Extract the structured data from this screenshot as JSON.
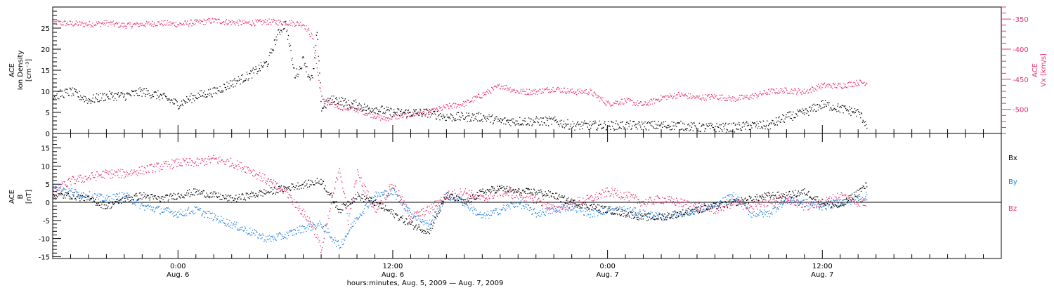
{
  "colors": {
    "black": "#000000",
    "red": "#e8336b",
    "blue": "#1f7fe0"
  },
  "chart_data": [
    {
      "type": "scatter",
      "panel": "top",
      "ylabel_left": [
        "ACE",
        "Ion Density",
        "[cm⁻³]"
      ],
      "ylabel_right": [
        "ACE",
        "Vx [km/s]"
      ],
      "ylim_left": [
        0,
        30
      ],
      "ylim_right": [
        -540,
        -330
      ],
      "yticks_left": [
        0,
        5,
        10,
        15,
        20,
        25
      ],
      "yticks_right": [
        -350,
        -400,
        -450,
        -500
      ],
      "series": [
        {
          "color": "#000000",
          "axis": "left",
          "x_hours": [
            0,
            2,
            4,
            6,
            8,
            10,
            12,
            14,
            16,
            18,
            20,
            22,
            24,
            24.5,
            25,
            25.5,
            26,
            26.5,
            27,
            27.5,
            28,
            28.5,
            29,
            29.5,
            30,
            31,
            32,
            33,
            34,
            35,
            36,
            38,
            40,
            42,
            44,
            46,
            48,
            50,
            52,
            54,
            56,
            58,
            60,
            62,
            64,
            66,
            68,
            70,
            72,
            74,
            76,
            78,
            80,
            82,
            84,
            86,
            88,
            90,
            91
          ],
          "values": [
            9,
            10,
            8,
            9,
            9,
            10,
            9,
            7,
            9,
            10,
            12,
            14,
            17,
            20,
            23,
            25,
            26,
            20,
            14,
            15,
            18,
            14,
            13,
            24,
            6,
            8,
            8,
            7,
            7,
            6,
            6,
            5,
            5,
            5,
            4,
            4,
            4,
            3,
            3,
            3,
            3,
            2,
            2,
            2,
            2,
            2,
            2,
            2,
            1.5,
            1.5,
            1.5,
            2,
            2,
            4,
            5,
            7,
            6,
            5,
            2
          ]
        },
        {
          "color": "#e8336b",
          "axis": "right",
          "x_hours": [
            0,
            2,
            4,
            6,
            8,
            10,
            12,
            14,
            16,
            18,
            20,
            22,
            24,
            26,
            28,
            29,
            29.5,
            30,
            31,
            32,
            33,
            34,
            35,
            36,
            37,
            38,
            40,
            42,
            44,
            46,
            48,
            50,
            52,
            54,
            56,
            58,
            60,
            62,
            64,
            66,
            68,
            70,
            72,
            74,
            76,
            78,
            80,
            82,
            84,
            86,
            88,
            90,
            91
          ],
          "values": [
            -355,
            -357,
            -358,
            -356,
            -360,
            -358,
            -356,
            -358,
            -355,
            -352,
            -355,
            -356,
            -354,
            -355,
            -358,
            -380,
            -430,
            -480,
            -490,
            -495,
            -498,
            -500,
            -505,
            -510,
            -515,
            -512,
            -508,
            -505,
            -495,
            -490,
            -475,
            -460,
            -470,
            -470,
            -465,
            -470,
            -470,
            -490,
            -485,
            -492,
            -480,
            -475,
            -480,
            -478,
            -482,
            -478,
            -470,
            -468,
            -470,
            -460,
            -460,
            -455,
            -455
          ]
        }
      ]
    },
    {
      "type": "scatter",
      "panel": "bottom",
      "ylabel_left": [
        "ACE",
        "B",
        "[nT]"
      ],
      "ylim": [
        -15.5,
        19
      ],
      "yticks": [
        -15,
        -10,
        -5,
        0,
        5,
        10,
        15
      ],
      "legend": [
        "Bx",
        "By",
        "Bz"
      ],
      "series": [
        {
          "name": "Bx",
          "color": "#000000",
          "x_hours": [
            0,
            2,
            4,
            6,
            8,
            10,
            12,
            14,
            16,
            18,
            20,
            22,
            24,
            26,
            28,
            30,
            32,
            34,
            36,
            38,
            40,
            42,
            44,
            46,
            48,
            50,
            52,
            54,
            56,
            58,
            60,
            62,
            64,
            66,
            68,
            70,
            72,
            74,
            76,
            78,
            80,
            82,
            84,
            86,
            88,
            90,
            91
          ],
          "values": [
            2,
            2,
            1,
            -1,
            1,
            2,
            1,
            2,
            3,
            2,
            1,
            2,
            3,
            4,
            5,
            6,
            -2,
            2,
            0,
            -3,
            -6,
            -8,
            2,
            0,
            3,
            4,
            3,
            3,
            2,
            0,
            -1,
            -2,
            -3,
            -4,
            -4,
            -3,
            -2,
            -1,
            0,
            1,
            2,
            2,
            3,
            0,
            -1,
            3,
            5
          ]
        },
        {
          "name": "By",
          "color": "#1f7fe0",
          "x_hours": [
            0,
            2,
            4,
            6,
            8,
            10,
            12,
            14,
            16,
            18,
            20,
            22,
            24,
            26,
            28,
            30,
            32,
            34,
            36,
            38,
            40,
            42,
            44,
            46,
            48,
            50,
            52,
            54,
            56,
            58,
            60,
            62,
            64,
            66,
            68,
            70,
            72,
            74,
            76,
            78,
            80,
            82,
            84,
            86,
            88,
            90,
            91
          ],
          "values": [
            5,
            3,
            2,
            1,
            2,
            -1,
            -2,
            -3,
            -2,
            -4,
            -6,
            -8,
            -10,
            -9,
            -7,
            -6,
            -12,
            -4,
            2,
            3,
            -3,
            -6,
            2,
            0,
            -4,
            -2,
            0,
            -3,
            -2,
            -1,
            -3,
            -2,
            -2,
            -3,
            -4,
            -3,
            -2,
            -1,
            2,
            -3,
            -3,
            1,
            0,
            -1,
            0,
            1,
            2
          ]
        },
        {
          "name": "Bz",
          "color": "#e8336b",
          "x_hours": [
            0,
            2,
            4,
            6,
            8,
            10,
            12,
            14,
            16,
            18,
            20,
            22,
            24,
            26,
            28,
            29,
            30,
            32,
            33,
            34,
            36,
            38,
            40,
            42,
            44,
            46,
            48,
            50,
            52,
            54,
            56,
            58,
            60,
            62,
            64,
            66,
            68,
            70,
            72,
            74,
            76,
            78,
            80,
            82,
            84,
            86,
            88,
            90,
            91
          ],
          "values": [
            3,
            6,
            7,
            8,
            8,
            9,
            10,
            11,
            11,
            12,
            11,
            9,
            6,
            3,
            -3,
            -6,
            -13,
            10,
            -5,
            8,
            -2,
            5,
            -4,
            -2,
            2,
            3,
            1,
            3,
            2,
            1,
            -2,
            0,
            1,
            3,
            2,
            0,
            1,
            0,
            -1,
            -2,
            0,
            -1,
            0,
            1,
            -1,
            0,
            2,
            0,
            0
          ]
        }
      ]
    }
  ],
  "xaxis": {
    "ticks": [
      {
        "time": "0:00",
        "date": "Aug. 6"
      },
      {
        "time": "12:00",
        "date": "Aug. 6"
      },
      {
        "time": "0:00",
        "date": "Aug. 7"
      },
      {
        "time": "12:00",
        "date": "Aug. 7"
      }
    ],
    "ticks_hours": [
      24,
      48,
      72,
      96
    ],
    "xlim_hours": [
      10,
      116
    ],
    "title": "hours:minutes, Aug.  5, 2009 — Aug.  7, 2009"
  }
}
